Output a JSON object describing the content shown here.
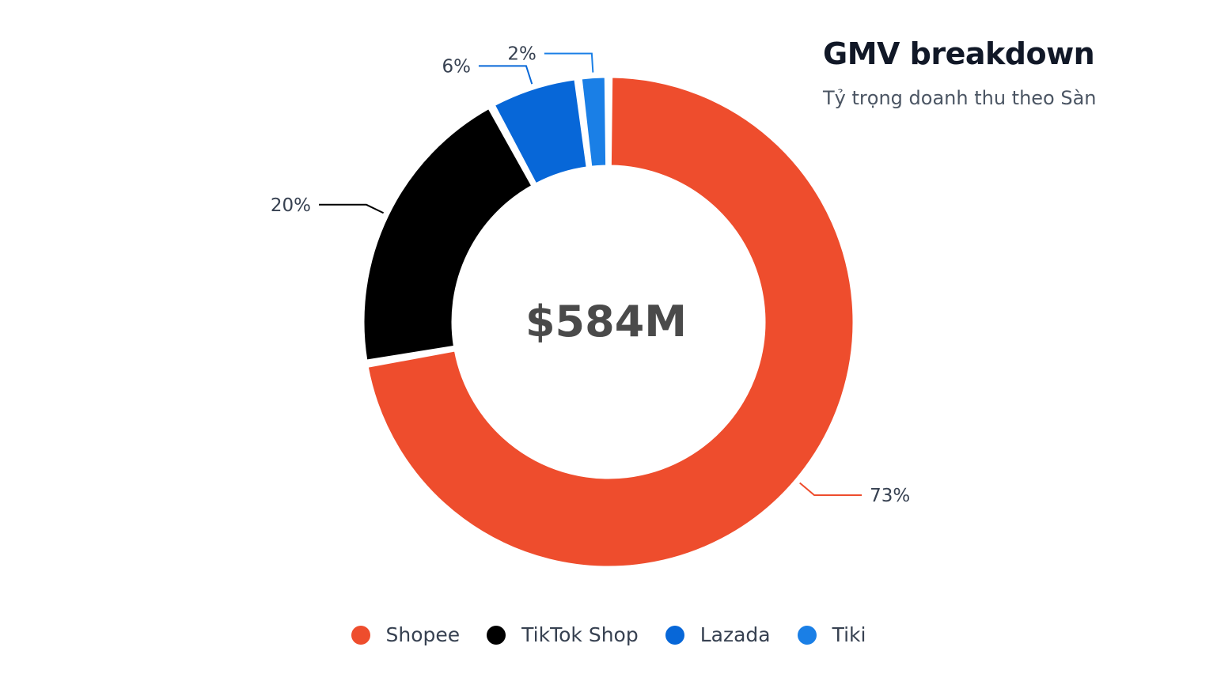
{
  "chart_data": {
    "type": "pie",
    "title": "GMV breakdown",
    "subtitle": "Tỷ trọng doanh thu theo Sàn",
    "center_label": "$584M",
    "categories": [
      "Shopee",
      "TikTok Shop",
      "Lazada",
      "Tiki"
    ],
    "values": [
      73,
      20,
      6,
      2
    ],
    "labels": [
      "73%",
      "20%",
      "6%",
      "2%"
    ],
    "colors": [
      "#ee4d2d",
      "#000000",
      "#0767d8",
      "#1a7fe6"
    ],
    "legend": "bottom"
  }
}
